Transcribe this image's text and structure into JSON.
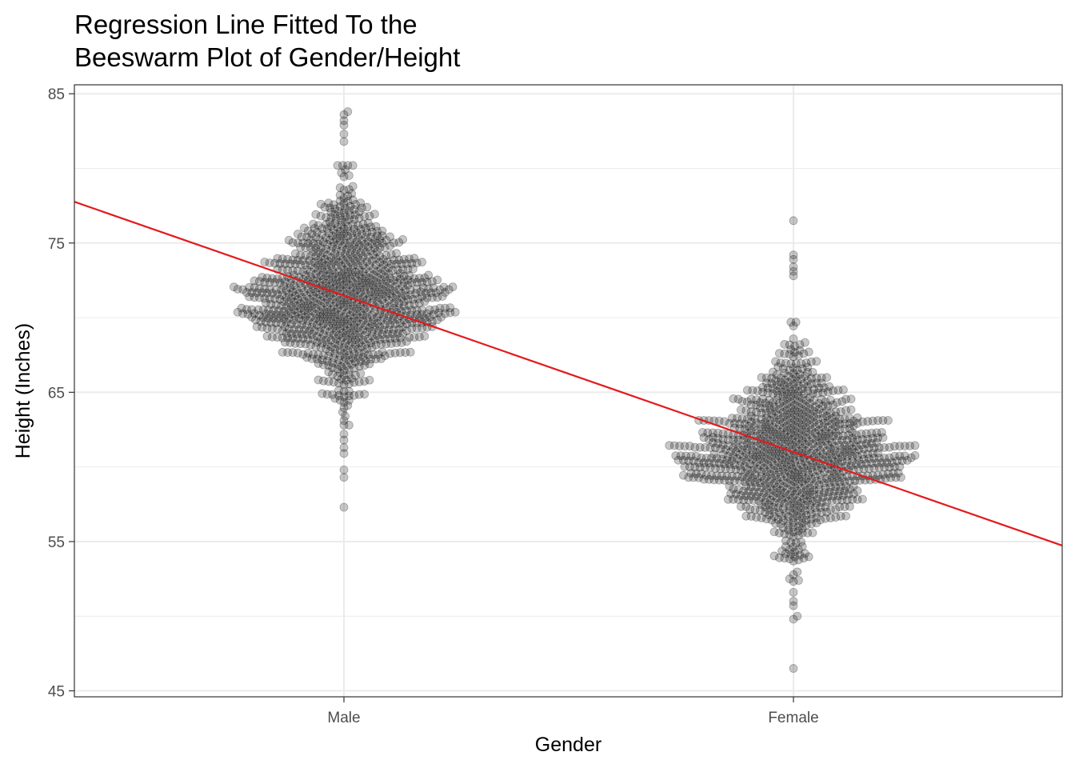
{
  "chart_data": {
    "type": "scatter",
    "subtype": "beeswarm",
    "title_lines": [
      "Regression Line Fitted To the",
      "Beeswarm Plot of Gender/Height"
    ],
    "xlabel": "Gender",
    "ylabel": "Height (Inches)",
    "categories": [
      "Male",
      "Female"
    ],
    "ylim": [
      44.6,
      85.6
    ],
    "yticks": [
      45,
      55,
      65,
      75,
      85
    ],
    "grid": true,
    "point_color": "#000000",
    "point_opacity": 0.22,
    "series": [
      {
        "category": "Male",
        "n": 1000,
        "median": 71.5,
        "spread_sd": 3.0,
        "min": 57.3,
        "max": 83.8,
        "outliers": [
          57.3,
          59.3,
          59.8,
          60.9,
          61.3,
          61.8,
          62.2,
          81.8,
          82.3,
          82.9,
          83.2,
          83.6,
          83.8
        ]
      },
      {
        "category": "Female",
        "n": 1000,
        "median": 61.0,
        "spread_sd": 3.0,
        "min": 46.5,
        "max": 76.5,
        "outliers": [
          46.5,
          49.8,
          50.0,
          50.7,
          51.0,
          51.6,
          72.8,
          73.1,
          73.4,
          73.9,
          74.2,
          76.5
        ]
      }
    ],
    "regression_line": {
      "color": "#e41a1c",
      "intercept": 81.96,
      "slope": -10.48
    }
  }
}
